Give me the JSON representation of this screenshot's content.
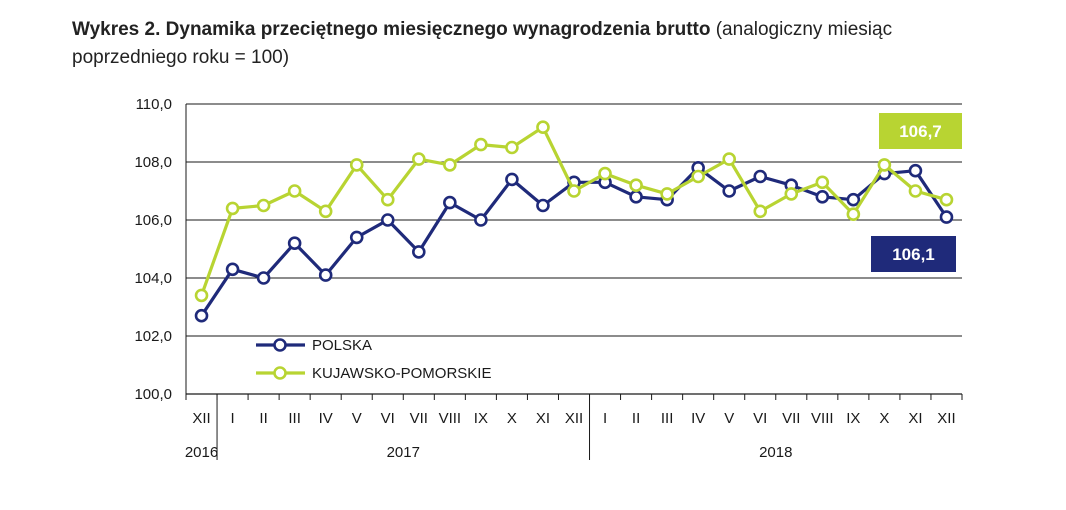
{
  "title": {
    "bold": "Wykres 2. Dynamika przeciętnego miesięcznego wynagrodzenia brutto",
    "rest": " (analogiczny miesiąc",
    "line2": "poprzedniego roku = 100)"
  },
  "colors": {
    "polska": "#1f2a7a",
    "kujawsko": "#b8d432",
    "grid": "#1a1a1a"
  },
  "chart_data": {
    "type": "line",
    "categories": [
      "XII",
      "I",
      "II",
      "III",
      "IV",
      "V",
      "VI",
      "VII",
      "VIII",
      "IX",
      "X",
      "XI",
      "XII",
      "I",
      "II",
      "III",
      "IV",
      "V",
      "VI",
      "VII",
      "VIII",
      "IX",
      "X",
      "XI",
      "XII"
    ],
    "years": [
      {
        "label": "2016",
        "from": 0,
        "to": 0
      },
      {
        "label": "2017",
        "from": 1,
        "to": 12
      },
      {
        "label": "2018",
        "from": 13,
        "to": 24
      }
    ],
    "ylim": [
      100,
      110
    ],
    "yticks": [
      100,
      102,
      104,
      106,
      108,
      110
    ],
    "ytick_labels": [
      "100,0",
      "102,0",
      "104,0",
      "106,0",
      "108,0",
      "110,0"
    ],
    "series": [
      {
        "name": "POLSKA",
        "color": "#1f2a7a",
        "values": [
          102.7,
          104.3,
          104.0,
          105.2,
          104.1,
          105.4,
          106.0,
          104.9,
          106.6,
          106.0,
          107.4,
          106.5,
          107.3,
          107.3,
          106.8,
          106.7,
          107.8,
          107.0,
          107.5,
          107.2,
          106.8,
          106.7,
          107.6,
          107.7,
          106.1
        ]
      },
      {
        "name": "KUJAWSKO-POMORSKIE",
        "color": "#b8d432",
        "values": [
          103.4,
          106.4,
          106.5,
          107.0,
          106.3,
          107.9,
          106.7,
          108.1,
          107.9,
          108.6,
          108.5,
          109.2,
          107.0,
          107.6,
          107.2,
          106.9,
          107.5,
          108.1,
          106.3,
          106.9,
          107.3,
          106.2,
          107.9,
          107.0,
          106.7
        ]
      }
    ],
    "callouts": [
      {
        "text": "106,7",
        "series": 1
      },
      {
        "text": "106,1",
        "series": 0
      }
    ],
    "legend_position": "bottom-left"
  }
}
